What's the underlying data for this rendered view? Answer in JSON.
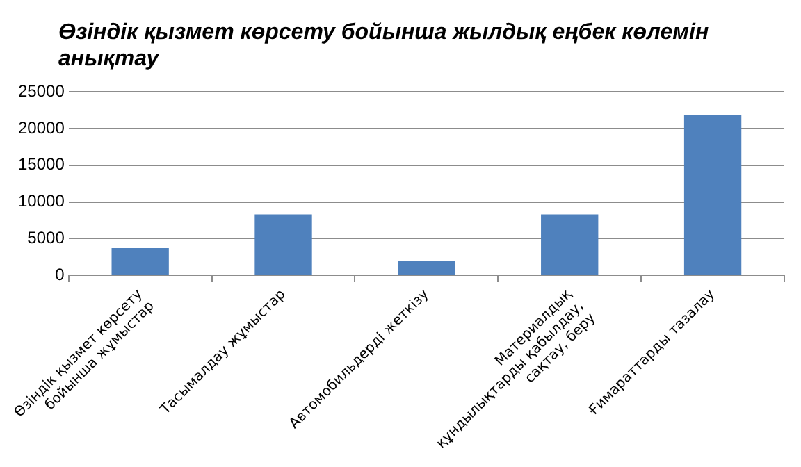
{
  "chart_data": {
    "type": "bar",
    "title": "Өзіндік қызмет көрсету бойынша жылдық еңбек көлемін анықтау",
    "categories": [
      "Өзіндік қызмет көрсету бойынша жұмыстар",
      "Тасымалдау жұмыстар",
      "Автомобильдерді жеткізу",
      "Материалдық құндылықтарды қабылдау, сақтау, беру",
      "Ғимараттарды тазалау"
    ],
    "values": [
      3700,
      8300,
      1900,
      8300,
      21900
    ],
    "color": "#4f81bd",
    "ylim": [
      0,
      25000
    ],
    "yticks": [
      0,
      5000,
      10000,
      15000,
      20000,
      25000
    ],
    "grid": "y",
    "legend": false
  }
}
